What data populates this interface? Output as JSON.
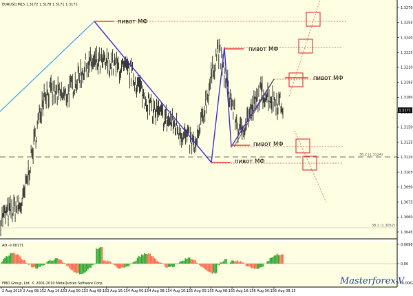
{
  "header": {
    "symbol": "EURUSD,M15",
    "open": "1.3172",
    "high": "1.3178",
    "low": "1.3171",
    "close": "1.3171"
  },
  "annotations": {
    "pivot_1": "пивот МФ",
    "pivot_2": "пивот МФ",
    "pivot_3": "пивот МФ",
    "pivot_4": "пивот МФ",
    "pivot_5": "пивот МФ",
    "fibo_label": "38.2 (1.3124)",
    "fibo_label_lower": "38.2 (1.3052)"
  },
  "oscillator": {
    "name": "AO",
    "value": "-0.00171",
    "scale": [
      "0.00903",
      "0.00",
      "-0.00671"
    ]
  },
  "footer": {
    "copyright": "FIBO Group, Ltd. © 2001-2010 MetaQuotes Software Corp.",
    "watermark": "Masterforex-V"
  },
  "colors": {
    "background": "#FEFFE2",
    "bars": "#222222",
    "ao_up": "#2ea82e",
    "ao_down": "#ff6a4d",
    "pivot": "#e23b3b",
    "zigzag": "#3b2bd6",
    "trend": "#3399ee"
  },
  "chart_data": {
    "type": "line",
    "title": "EURUSD,M15",
    "x_tick_labels": [
      "2 Aug 2010",
      "2 Aug 08:15",
      "2 Aug 16:15",
      "3 Aug 00:15",
      "3 Aug 08:15",
      "3 Aug 16:15",
      "4 Aug 00:15",
      "4 Aug 08:15",
      "4 Aug 16:15",
      "5 Aug 00:15",
      "5 Aug 08:15",
      "5 Aug 16:15",
      "6 Aug 00:15",
      "6 Aug 08:15"
    ],
    "y_tick_labels": [
      "1.3270",
      "1.3255",
      "1.3240",
      "1.3225",
      "1.3210",
      "1.3195",
      "1.3180",
      "1.3165",
      "1.3150",
      "1.3135",
      "1.3120",
      "1.3105",
      "1.3090",
      "1.3075",
      "1.3060",
      "1.3045"
    ],
    "ylim": [
      1.3035,
      1.3275
    ],
    "series": [
      {
        "x": [
          "2 Aug 2010",
          "2 Aug 08:15",
          "2 Aug 16:15",
          "3 Aug 00:15",
          "3 Aug 08:15",
          "3 Aug 16:15",
          "4 Aug 00:15",
          "4 Aug 08:15",
          "4 Aug 16:15",
          "5 Aug 00:15",
          "5 Aug 08:15",
          "5 Aug 16:15",
          "6 Aug 00:15",
          "6 Aug 08:15"
        ],
        "values": [
          1.305,
          1.3065,
          1.3185,
          1.318,
          1.3215,
          1.3215,
          1.3205,
          1.3165,
          1.315,
          1.3125,
          1.3232,
          1.314,
          1.3185,
          1.317
        ]
      }
    ]
  }
}
